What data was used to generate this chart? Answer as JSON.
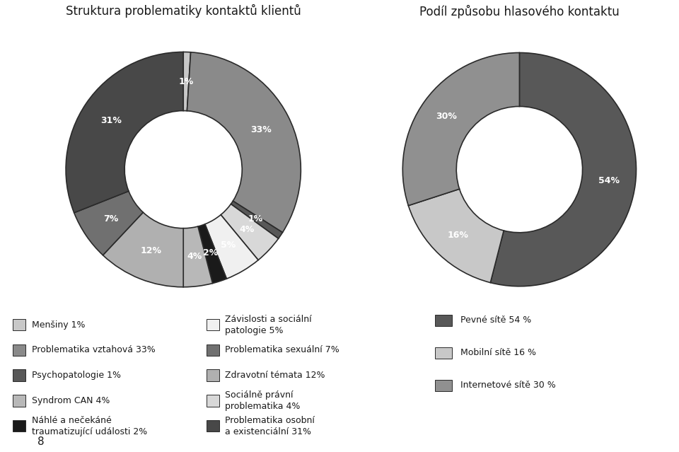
{
  "title_left": "Struktura problematiky kontaktů klientů",
  "title_right": "Podíl způsobu hlasového kontaktu",
  "chart1": {
    "values": [
      1,
      33,
      1,
      4,
      5,
      2,
      4,
      12,
      7,
      31
    ],
    "colors": [
      "#c8c8c8",
      "#8a8a8a",
      "#585858",
      "#d8d8d8",
      "#f0f0f0",
      "#1a1a1a",
      "#b8b8b8",
      "#b0b0b0",
      "#707070",
      "#484848"
    ],
    "pct_labels": [
      "1%",
      "33%",
      "1%",
      "4%",
      "5%",
      "2%",
      "4%",
      "12%",
      "7%",
      "31%"
    ],
    "startangle": 90
  },
  "chart2": {
    "values": [
      54,
      16,
      30
    ],
    "colors": [
      "#585858",
      "#c8c8c8",
      "#909090"
    ],
    "pct_labels": [
      "54%",
      "16%",
      "30%"
    ],
    "startangle": 90
  },
  "legend1_col1": [
    {
      "label": "Menšiny 1%",
      "color": "#c8c8c8"
    },
    {
      "label": "Problematika vztahová 33%",
      "color": "#8a8a8a"
    },
    {
      "label": "Psychopatologie 1%",
      "color": "#585858"
    },
    {
      "label": "Syndrom CAN 4%",
      "color": "#b8b8b8"
    },
    {
      "label": "Náhlé a nečekáné\ntraumatizující události 2%",
      "color": "#1a1a1a"
    }
  ],
  "legend1_col2": [
    {
      "label": "Závislosti a sociální\npatologie 5%",
      "color": "#f0f0f0"
    },
    {
      "label": "Problematika sexuální 7%",
      "color": "#707070"
    },
    {
      "label": "Zdravotní témata 12%",
      "color": "#b0b0b0"
    },
    {
      "label": "Sociálně právní\nproblematika 4%",
      "color": "#d8d8d8"
    },
    {
      "label": "Problematika osobní\na existenciální 31%",
      "color": "#484848"
    }
  ],
  "legend2": [
    {
      "label": "Pevné sítě 54 %",
      "color": "#585858"
    },
    {
      "label": "Mobilní sítě 16 %",
      "color": "#c8c8c8"
    },
    {
      "label": "Internetové sítě 30 %",
      "color": "#909090"
    }
  ],
  "bg_color": "#ffffff",
  "text_color": "#1a1a1a",
  "font_size_title": 12,
  "font_size_pct": 9,
  "font_size_legend": 9,
  "wedge_linewidth": 1.2,
  "wedge_edgecolor": "#2a2a2a"
}
